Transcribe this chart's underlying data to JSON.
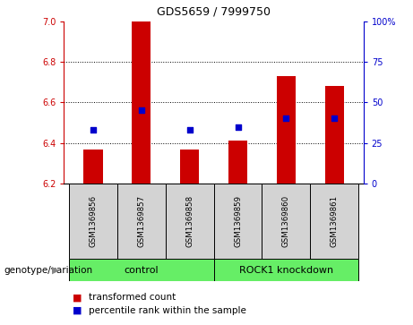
{
  "title": "GDS5659 / 7999750",
  "samples": [
    "GSM1369856",
    "GSM1369857",
    "GSM1369858",
    "GSM1369859",
    "GSM1369860",
    "GSM1369861"
  ],
  "bar_values": [
    6.37,
    7.0,
    6.37,
    6.41,
    6.73,
    6.68
  ],
  "bar_base": 6.2,
  "percentile_values": [
    33,
    45,
    33,
    35,
    40,
    40
  ],
  "ylim_left": [
    6.2,
    7.0
  ],
  "ylim_right": [
    0,
    100
  ],
  "yticks_left": [
    6.2,
    6.4,
    6.6,
    6.8,
    7.0
  ],
  "yticks_right": [
    0,
    25,
    50,
    75,
    100
  ],
  "bar_color": "#cc0000",
  "dot_color": "#0000cc",
  "group_ranges": [
    [
      0,
      2
    ],
    [
      3,
      5
    ]
  ],
  "group_labels": [
    "control",
    "ROCK1 knockdown"
  ],
  "group_label_prefix": "genotype/variation",
  "legend_bar_label": "transformed count",
  "legend_dot_label": "percentile rank within the sample",
  "bg_color": "#d3d3d3",
  "green_color": "#66ee66",
  "label_color_left": "#cc0000",
  "label_color_right": "#0000cc",
  "bar_width": 0.4
}
